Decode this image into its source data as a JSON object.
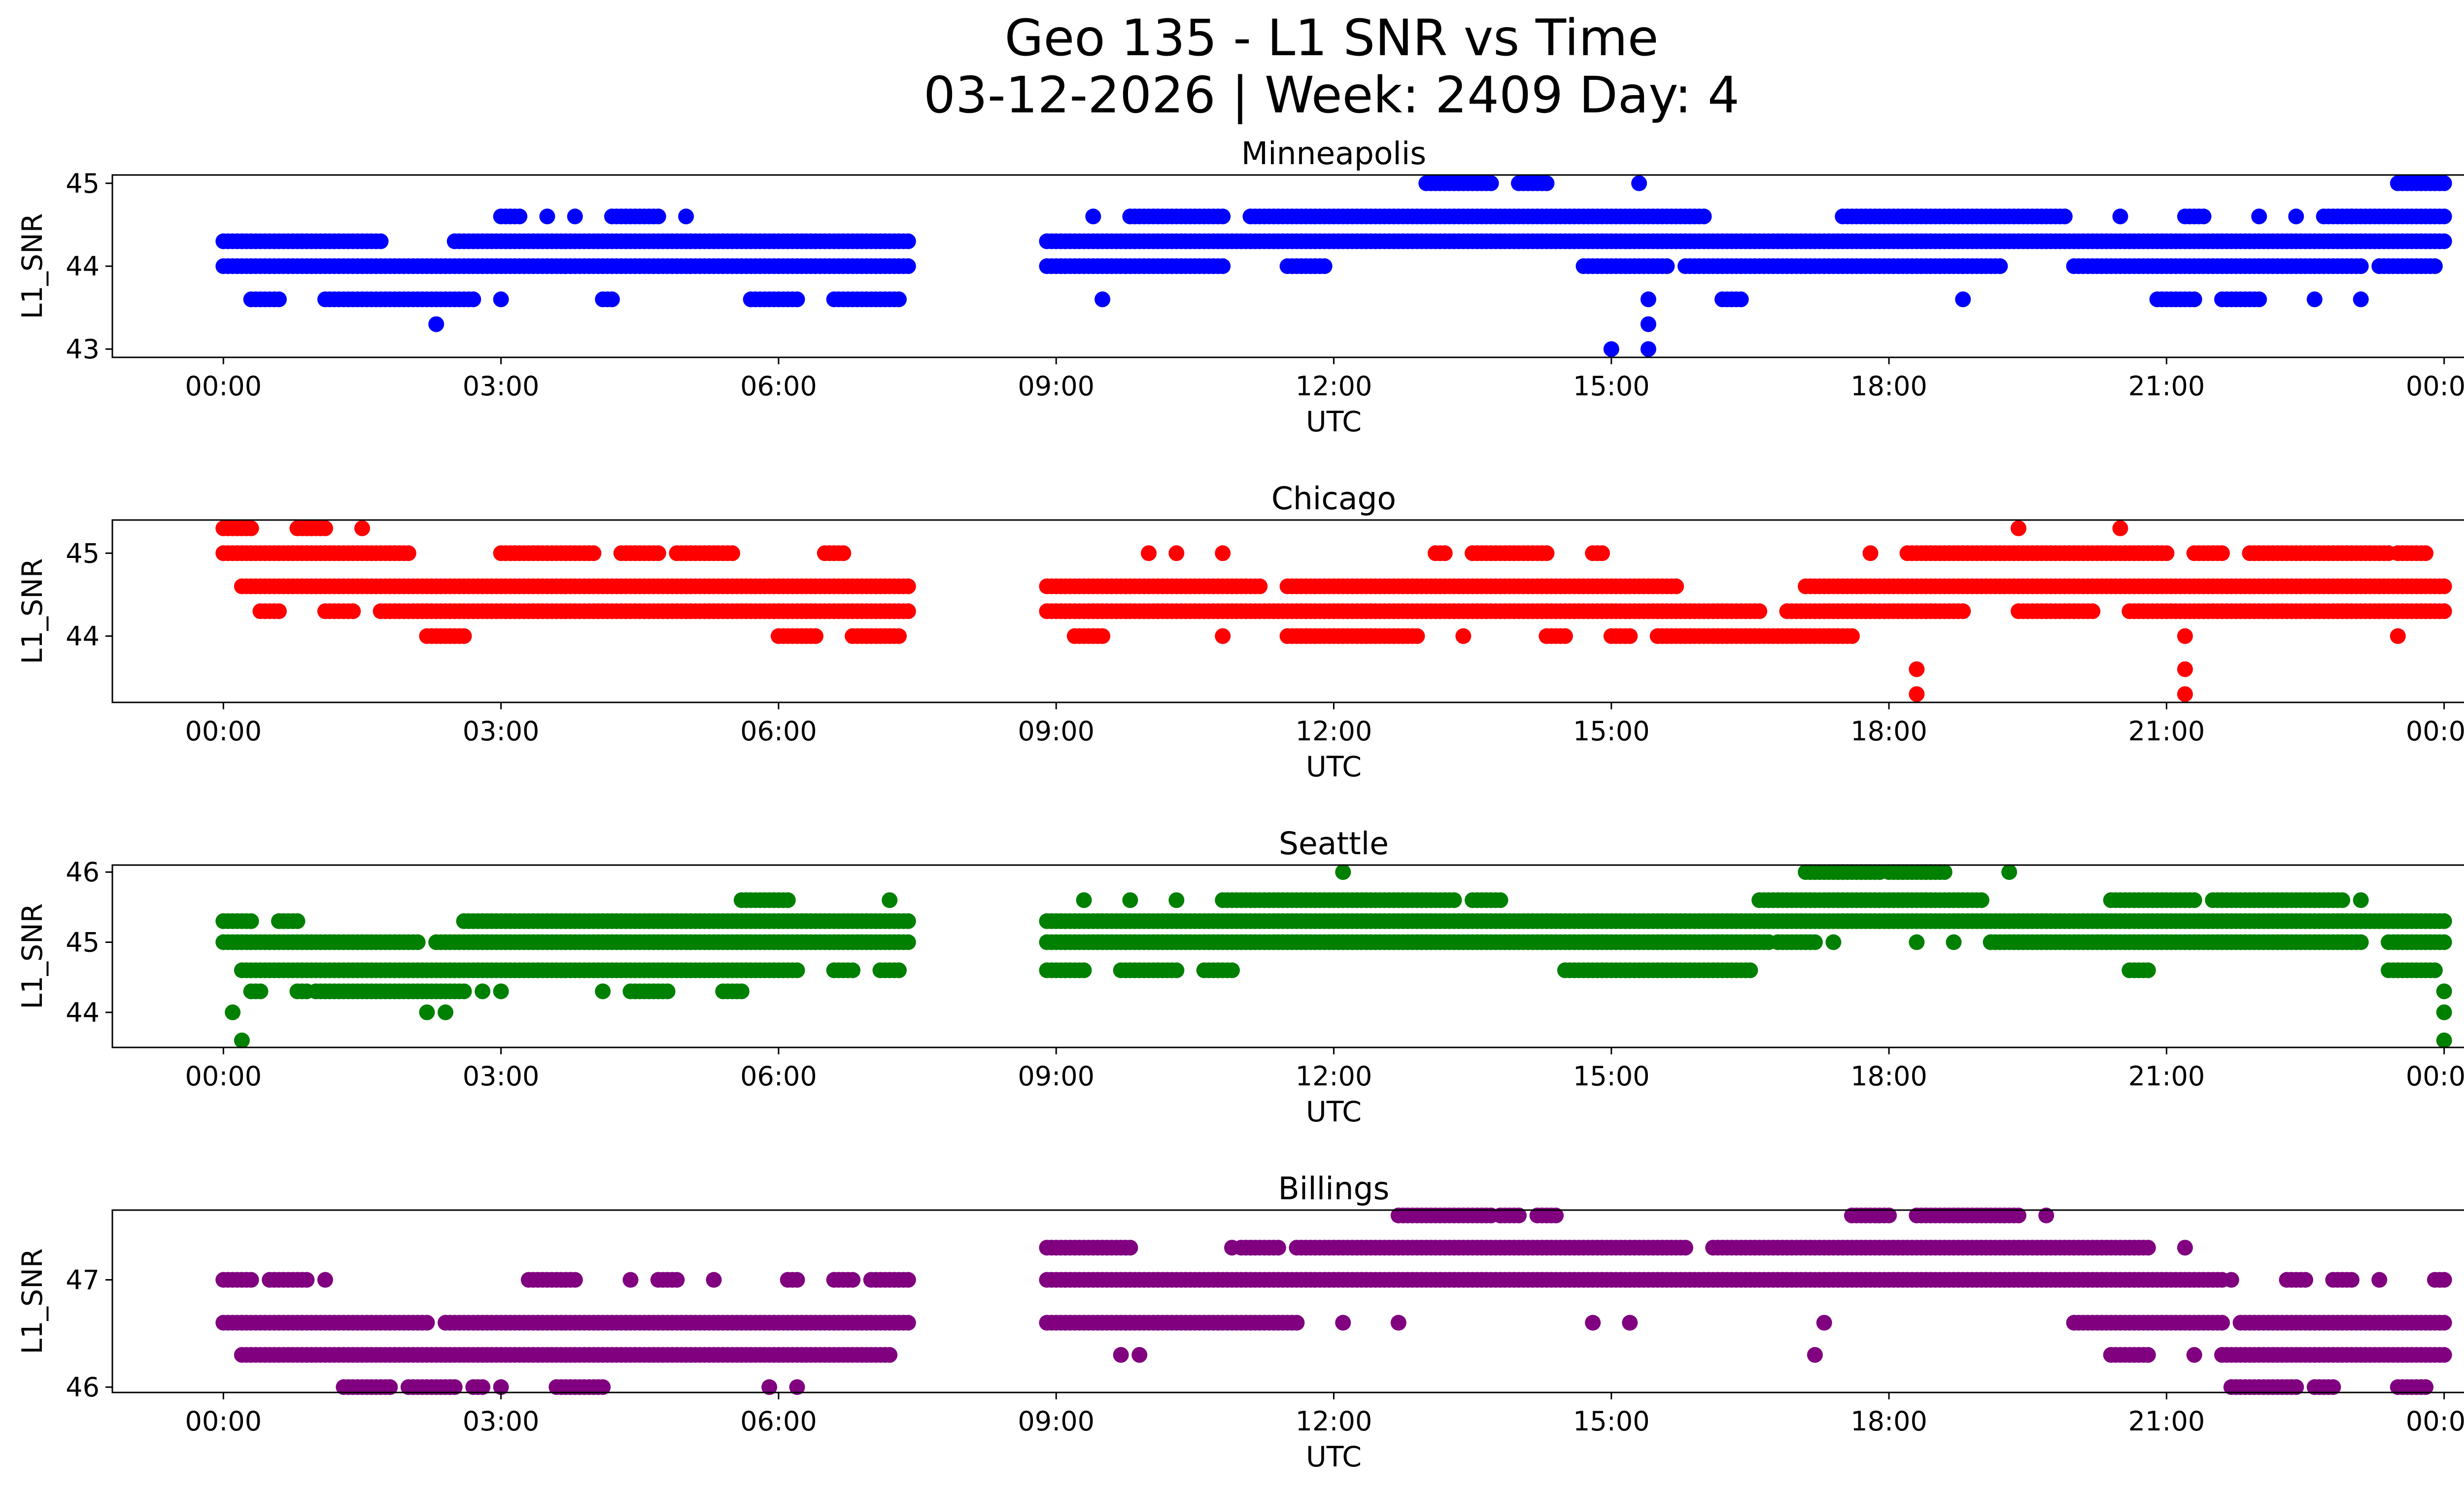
{
  "chart_data": {
    "type": "scatter",
    "title": "Geo 135 - L1 SNR vs Time",
    "subtitle": "03-12-2026 | Week: 2409 Day: 4",
    "xlabel": "UTC",
    "ylabel": "L1_SNR",
    "x_unit": "hours UTC (0 = 00:00, 24 = next 00:00)",
    "xlim": [
      -1.2,
      25.2
    ],
    "xticks": [
      0,
      3,
      6,
      9,
      12,
      15,
      18,
      21,
      24
    ],
    "xtick_labels": [
      "00:00",
      "03:00",
      "06:00",
      "09:00",
      "12:00",
      "15:00",
      "18:00",
      "21:00",
      "00:00"
    ],
    "data_gap_hours": [
      7.4,
      8.9
    ],
    "panels": [
      {
        "name": "Minneapolis",
        "color": "#0000ff",
        "ylim": [
          42.9,
          45.1
        ],
        "yticks": [
          43,
          44,
          45
        ],
        "ytick_labels": [
          "43",
          "44",
          "45"
        ],
        "levels": [
          {
            "y": 44.3,
            "segments": [
              [
                0.0,
                1.7
              ],
              [
                2.5,
                7.4
              ],
              [
                8.9,
                24.0
              ]
            ]
          },
          {
            "y": 44.0,
            "segments": [
              [
                0.0,
                7.4
              ],
              [
                8.9,
                10.8
              ],
              [
                11.5,
                11.9
              ],
              [
                14.7,
                15.6
              ],
              [
                15.8,
                19.2
              ],
              [
                20.0,
                23.1
              ],
              [
                23.3,
                23.9
              ]
            ]
          },
          {
            "y": 44.6,
            "segments": [
              [
                3.0,
                3.2
              ],
              [
                4.2,
                4.7
              ],
              [
                9.8,
                10.8
              ],
              [
                11.1,
                16.0
              ],
              [
                17.5,
                19.9
              ],
              [
                21.2,
                21.4
              ],
              [
                22.7,
                24.0
              ]
            ]
          },
          {
            "y": 43.6,
            "segments": [
              [
                0.3,
                0.6
              ],
              [
                1.1,
                2.7
              ],
              [
                4.1,
                4.2
              ],
              [
                5.7,
                6.2
              ],
              [
                6.6,
                7.3
              ],
              [
                16.2,
                16.4
              ],
              [
                20.9,
                21.3
              ],
              [
                21.6,
                22.0
              ]
            ]
          },
          {
            "y": 45.0,
            "segments": [
              [
                13.0,
                13.7
              ],
              [
                14.0,
                14.3
              ],
              [
                23.5,
                24.0
              ]
            ]
          }
        ],
        "points": [
          {
            "x": 2.3,
            "y": 43.3
          },
          {
            "x": 3.0,
            "y": 43.6
          },
          {
            "x": 3.5,
            "y": 44.6
          },
          {
            "x": 3.8,
            "y": 44.6
          },
          {
            "x": 5.0,
            "y": 44.6
          },
          {
            "x": 9.4,
            "y": 44.6
          },
          {
            "x": 9.5,
            "y": 43.6
          },
          {
            "x": 15.0,
            "y": 43.0
          },
          {
            "x": 15.4,
            "y": 43.0
          },
          {
            "x": 15.4,
            "y": 43.3
          },
          {
            "x": 15.4,
            "y": 43.6
          },
          {
            "x": 15.3,
            "y": 45.0
          },
          {
            "x": 18.8,
            "y": 43.6
          },
          {
            "x": 18.8,
            "y": 44.0
          },
          {
            "x": 20.5,
            "y": 44.6
          },
          {
            "x": 22.0,
            "y": 44.6
          },
          {
            "x": 22.4,
            "y": 44.6
          },
          {
            "x": 22.6,
            "y": 43.6
          },
          {
            "x": 23.0,
            "y": 44.6
          },
          {
            "x": 23.1,
            "y": 43.6
          }
        ]
      },
      {
        "name": "Chicago",
        "color": "#ff0000",
        "ylim": [
          43.2,
          45.4
        ],
        "yticks": [
          44,
          45
        ],
        "ytick_labels": [
          "44",
          "45"
        ],
        "levels": [
          {
            "y": 44.6,
            "segments": [
              [
                0.2,
                7.4
              ],
              [
                8.9,
                11.2
              ],
              [
                11.5,
                15.7
              ],
              [
                17.1,
                24.0
              ]
            ]
          },
          {
            "y": 44.3,
            "segments": [
              [
                0.4,
                0.6
              ],
              [
                1.1,
                1.4
              ],
              [
                1.7,
                7.4
              ],
              [
                8.9,
                16.6
              ],
              [
                16.9,
                18.8
              ],
              [
                19.4,
                20.2
              ],
              [
                20.6,
                24.0
              ]
            ]
          },
          {
            "y": 45.0,
            "segments": [
              [
                0.0,
                2.0
              ],
              [
                3.0,
                4.0
              ],
              [
                4.3,
                4.7
              ],
              [
                4.9,
                5.5
              ],
              [
                6.5,
                6.7
              ],
              [
                13.1,
                13.2
              ],
              [
                13.5,
                14.3
              ],
              [
                14.8,
                14.9
              ],
              [
                18.2,
                21.0
              ],
              [
                21.3,
                21.6
              ],
              [
                21.9,
                23.4
              ],
              [
                23.5,
                23.8
              ]
            ]
          },
          {
            "y": 44.0,
            "segments": [
              [
                2.2,
                2.6
              ],
              [
                6.0,
                6.4
              ],
              [
                6.8,
                7.3
              ],
              [
                9.2,
                9.5
              ],
              [
                11.5,
                12.9
              ],
              [
                14.3,
                14.5
              ],
              [
                15.0,
                15.2
              ],
              [
                15.5,
                17.6
              ]
            ]
          },
          {
            "y": 45.3,
            "segments": [
              [
                0.0,
                0.3
              ],
              [
                0.8,
                1.1
              ]
            ]
          }
        ],
        "points": [
          {
            "x": 1.5,
            "y": 45.3
          },
          {
            "x": 10.0,
            "y": 45.0
          },
          {
            "x": 10.3,
            "y": 45.0
          },
          {
            "x": 10.8,
            "y": 45.0
          },
          {
            "x": 10.8,
            "y": 44.0
          },
          {
            "x": 13.4,
            "y": 44.0
          },
          {
            "x": 17.8,
            "y": 45.0
          },
          {
            "x": 18.3,
            "y": 43.6
          },
          {
            "x": 18.3,
            "y": 43.3
          },
          {
            "x": 19.4,
            "y": 45.3
          },
          {
            "x": 20.5,
            "y": 45.3
          },
          {
            "x": 21.2,
            "y": 44.0
          },
          {
            "x": 21.2,
            "y": 43.6
          },
          {
            "x": 21.2,
            "y": 43.3
          },
          {
            "x": 23.5,
            "y": 44.0
          }
        ]
      },
      {
        "name": "Seattle",
        "color": "#008000",
        "ylim": [
          43.5,
          46.1
        ],
        "yticks": [
          44,
          45,
          46
        ],
        "ytick_labels": [
          "44",
          "45",
          "46"
        ],
        "levels": [
          {
            "y": 45.3,
            "segments": [
              [
                0.0,
                0.3
              ],
              [
                0.6,
                0.8
              ],
              [
                2.6,
                7.4
              ],
              [
                8.9,
                24.0
              ]
            ]
          },
          {
            "y": 45.0,
            "segments": [
              [
                0.0,
                2.1
              ],
              [
                2.3,
                7.4
              ],
              [
                8.9,
                16.7
              ],
              [
                16.8,
                17.2
              ],
              [
                19.1,
                23.1
              ],
              [
                23.4,
                24.0
              ]
            ]
          },
          {
            "y": 44.6,
            "segments": [
              [
                0.2,
                6.2
              ],
              [
                6.6,
                6.8
              ],
              [
                7.1,
                7.3
              ],
              [
                8.9,
                9.3
              ],
              [
                9.7,
                10.3
              ],
              [
                10.6,
                10.9
              ],
              [
                14.5,
                16.5
              ],
              [
                20.6,
                20.8
              ],
              [
                23.4,
                23.9
              ]
            ]
          },
          {
            "y": 44.3,
            "segments": [
              [
                0.3,
                0.4
              ],
              [
                0.8,
                0.9
              ],
              [
                1.0,
                2.6
              ],
              [
                4.4,
                4.8
              ],
              [
                5.4,
                5.6
              ]
            ]
          },
          {
            "y": 45.6,
            "segments": [
              [
                5.6,
                6.1
              ],
              [
                10.8,
                13.3
              ],
              [
                13.5,
                13.8
              ],
              [
                16.6,
                19.0
              ],
              [
                20.4,
                21.3
              ],
              [
                21.5,
                22.9
              ]
            ]
          },
          {
            "y": 46.0,
            "segments": [
              [
                17.1,
                17.9
              ],
              [
                18.0,
                18.6
              ]
            ]
          }
        ],
        "points": [
          {
            "x": 0.1,
            "y": 44.0
          },
          {
            "x": 0.2,
            "y": 43.6
          },
          {
            "x": 2.2,
            "y": 44.0
          },
          {
            "x": 2.4,
            "y": 44.0
          },
          {
            "x": 2.8,
            "y": 44.3
          },
          {
            "x": 3.0,
            "y": 44.3
          },
          {
            "x": 4.1,
            "y": 44.3
          },
          {
            "x": 7.2,
            "y": 45.6
          },
          {
            "x": 9.3,
            "y": 45.6
          },
          {
            "x": 9.8,
            "y": 45.6
          },
          {
            "x": 10.3,
            "y": 45.6
          },
          {
            "x": 12.1,
            "y": 46.0
          },
          {
            "x": 17.4,
            "y": 45.0
          },
          {
            "x": 18.3,
            "y": 45.0
          },
          {
            "x": 18.7,
            "y": 45.0
          },
          {
            "x": 19.3,
            "y": 46.0
          },
          {
            "x": 23.1,
            "y": 45.6
          },
          {
            "x": 24.0,
            "y": 44.3
          },
          {
            "x": 24.0,
            "y": 44.0
          },
          {
            "x": 24.0,
            "y": 43.6
          }
        ]
      },
      {
        "name": "Billings",
        "color": "#800080",
        "ylim": [
          45.95,
          47.65
        ],
        "yticks": [
          46,
          47
        ],
        "ytick_labels": [
          "46",
          "47"
        ],
        "levels": [
          {
            "y": 46.6,
            "segments": [
              [
                0.0,
                2.2
              ],
              [
                2.4,
                7.4
              ],
              [
                8.9,
                11.6
              ],
              [
                20.0,
                21.6
              ],
              [
                21.8,
                24.0
              ]
            ]
          },
          {
            "y": 46.3,
            "segments": [
              [
                0.2,
                7.2
              ],
              [
                20.4,
                20.8
              ],
              [
                21.6,
                24.0
              ]
            ]
          },
          {
            "y": 47.0,
            "segments": [
              [
                0.0,
                0.3
              ],
              [
                0.5,
                0.9
              ],
              [
                3.3,
                3.8
              ],
              [
                4.7,
                4.9
              ],
              [
                6.1,
                6.2
              ],
              [
                6.6,
                6.8
              ],
              [
                7.0,
                7.4
              ],
              [
                8.9,
                21.6
              ],
              [
                22.3,
                22.5
              ],
              [
                22.8,
                23.0
              ],
              [
                23.9,
                24.0
              ]
            ]
          },
          {
            "y": 47.3,
            "segments": [
              [
                8.9,
                9.8
              ],
              [
                11.0,
                11.4
              ],
              [
                11.6,
                15.8
              ],
              [
                16.1,
                20.8
              ]
            ]
          },
          {
            "y": 46.0,
            "segments": [
              [
                1.3,
                1.8
              ],
              [
                2.0,
                2.5
              ],
              [
                2.7,
                2.8
              ],
              [
                3.6,
                4.1
              ],
              [
                21.7,
                22.4
              ],
              [
                22.6,
                22.8
              ],
              [
                23.5,
                23.8
              ]
            ]
          },
          {
            "y": 47.6,
            "segments": [
              [
                12.7,
                13.7
              ],
              [
                13.8,
                14.0
              ],
              [
                14.2,
                14.4
              ],
              [
                17.6,
                18.0
              ],
              [
                18.3,
                19.4
              ]
            ]
          }
        ],
        "points": [
          {
            "x": 1.1,
            "y": 47.0
          },
          {
            "x": 3.0,
            "y": 46.0
          },
          {
            "x": 4.4,
            "y": 47.0
          },
          {
            "x": 5.3,
            "y": 47.0
          },
          {
            "x": 5.9,
            "y": 46.0
          },
          {
            "x": 6.2,
            "y": 46.0
          },
          {
            "x": 9.7,
            "y": 46.3
          },
          {
            "x": 9.9,
            "y": 46.3
          },
          {
            "x": 10.9,
            "y": 47.3
          },
          {
            "x": 12.1,
            "y": 46.6
          },
          {
            "x": 12.7,
            "y": 46.6
          },
          {
            "x": 14.8,
            "y": 46.6
          },
          {
            "x": 15.2,
            "y": 46.6
          },
          {
            "x": 17.2,
            "y": 46.3
          },
          {
            "x": 17.3,
            "y": 46.6
          },
          {
            "x": 19.7,
            "y": 47.6
          },
          {
            "x": 21.2,
            "y": 47.3
          },
          {
            "x": 21.3,
            "y": 46.3
          },
          {
            "x": 21.7,
            "y": 47.0
          },
          {
            "x": 23.3,
            "y": 47.0
          }
        ]
      }
    ]
  }
}
